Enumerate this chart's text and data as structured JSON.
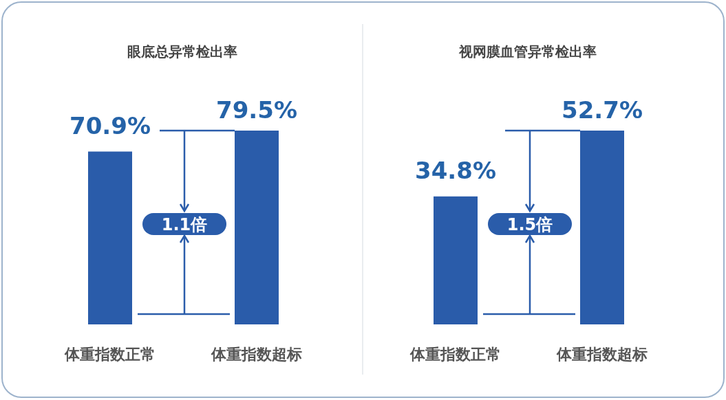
{
  "chart_data": [
    {
      "type": "bar",
      "title": "眼底总异常检出率",
      "categories": [
        "体重指数正常",
        "体重指数超标"
      ],
      "values": [
        70.9,
        79.5
      ],
      "value_labels": [
        "70.9%",
        "79.5%"
      ],
      "color": "#2a5caa",
      "annotations": [
        "1.1倍"
      ]
    },
    {
      "type": "bar",
      "title": "视网膜血管异常检出率",
      "categories": [
        "体重指数正常",
        "体重指数超标"
      ],
      "values": [
        34.8,
        52.7
      ],
      "value_labels": [
        "34.8%",
        "52.7%"
      ],
      "color": "#2a5caa",
      "annotations": [
        "1.5倍"
      ]
    }
  ]
}
